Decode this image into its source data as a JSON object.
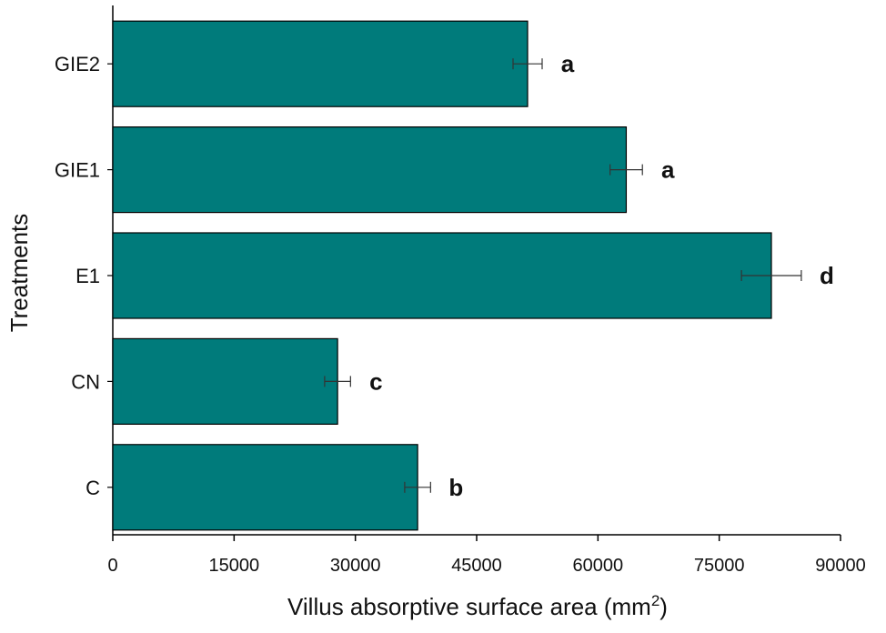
{
  "chart_data": {
    "type": "bar",
    "orientation": "horizontal",
    "x_label": "Villus absorptive surface area (mm",
    "x_label_sup": "2",
    "x_label_end": ")",
    "y_label": "Treatments",
    "categories": [
      "GIE2",
      "GIE1",
      "E1",
      "CN",
      "C"
    ],
    "values": [
      51300,
      63500,
      81450,
      27800,
      37700
    ],
    "errors": [
      1800,
      2000,
      3700,
      1600,
      1600
    ],
    "letters": [
      "a",
      "a",
      "d",
      "c",
      "b"
    ],
    "color": "#007b7b",
    "xlim": [
      0,
      90000
    ],
    "xticks": [
      0,
      15000,
      30000,
      45000,
      60000,
      75000,
      90000
    ]
  }
}
